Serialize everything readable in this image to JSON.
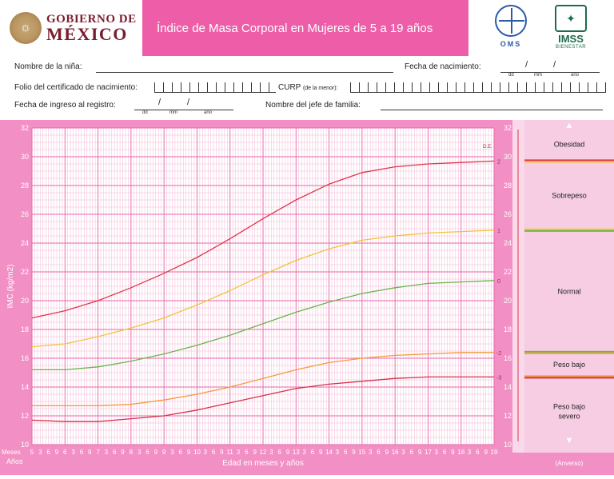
{
  "header": {
    "gov_line1": "GOBIERNO DE",
    "gov_line2": "MÉXICO",
    "title": "Índice de Masa Corporal en Mujeres de 5 a 19 años",
    "oms_label": "OMS",
    "imss_label": "IMSS",
    "imss_sub": "BIENESTAR"
  },
  "form": {
    "name_label": "Nombre de la niña:",
    "birth_label": "Fecha de nacimiento:",
    "folio_label": "Folio del certificado de nacimiento:",
    "curp_label": "CURP",
    "curp_note": "(de la menor):",
    "entry_label": "Fecha de ingreso al registro:",
    "head_label": "Nombre del jefe de familia:",
    "dd": "dd",
    "mm": "mm",
    "yy": "año",
    "slash": "/"
  },
  "chart_data": {
    "type": "line",
    "ylabel": "IMC (kg/m2)",
    "xlabel": "Edad en meses y años",
    "x_row_label_months": "Meses",
    "x_row_label_years": "Años",
    "ylim": [
      10,
      32
    ],
    "y_ticks": [
      10,
      12,
      14,
      16,
      18,
      20,
      22,
      24,
      26,
      28,
      30,
      32
    ],
    "x_range_years": [
      5,
      19
    ],
    "x_tick_labels": [
      "5",
      "3",
      "6",
      "9",
      "6",
      "3",
      "6",
      "9",
      "7",
      "3",
      "6",
      "9",
      "8",
      "3",
      "6",
      "9",
      "9",
      "3",
      "6",
      "9",
      "10",
      "3",
      "6",
      "9",
      "11",
      "3",
      "6",
      "9",
      "12",
      "3",
      "6",
      "9",
      "13",
      "3",
      "6",
      "9",
      "14",
      "3",
      "6",
      "9",
      "15",
      "3",
      "6",
      "9",
      "16",
      "3",
      "6",
      "9",
      "17",
      "3",
      "6",
      "9",
      "18",
      "3",
      "6",
      "9",
      "19"
    ],
    "de_label": "D.E.",
    "footer_note": "(Anverso)",
    "grid": true,
    "series": [
      {
        "name": "2",
        "color": "#e0364a",
        "x": [
          5,
          6,
          7,
          8,
          9,
          10,
          11,
          12,
          13,
          14,
          15,
          16,
          17,
          18,
          19
        ],
        "values": [
          18.8,
          19.3,
          20.0,
          20.9,
          21.9,
          23.0,
          24.3,
          25.7,
          27.0,
          28.1,
          28.9,
          29.3,
          29.5,
          29.6,
          29.7
        ]
      },
      {
        "name": "1",
        "color": "#f2c43a",
        "x": [
          5,
          6,
          7,
          8,
          9,
          10,
          11,
          12,
          13,
          14,
          15,
          16,
          17,
          18,
          19
        ],
        "values": [
          16.8,
          17.0,
          17.5,
          18.1,
          18.8,
          19.7,
          20.7,
          21.8,
          22.8,
          23.6,
          24.2,
          24.5,
          24.7,
          24.8,
          24.9
        ]
      },
      {
        "name": "0",
        "color": "#6bb44a",
        "x": [
          5,
          6,
          7,
          8,
          9,
          10,
          11,
          12,
          13,
          14,
          15,
          16,
          17,
          18,
          19
        ],
        "values": [
          15.2,
          15.2,
          15.4,
          15.8,
          16.3,
          16.9,
          17.6,
          18.4,
          19.2,
          19.9,
          20.5,
          20.9,
          21.2,
          21.3,
          21.4
        ]
      },
      {
        "name": "-2",
        "color": "#f59a3a",
        "x": [
          5,
          6,
          7,
          8,
          9,
          10,
          11,
          12,
          13,
          14,
          15,
          16,
          17,
          18,
          19
        ],
        "values": [
          12.7,
          12.7,
          12.7,
          12.8,
          13.1,
          13.5,
          14.0,
          14.6,
          15.2,
          15.7,
          16.0,
          16.2,
          16.3,
          16.4,
          16.4
        ]
      },
      {
        "name": "-3",
        "color": "#d4334a",
        "x": [
          5,
          6,
          7,
          8,
          9,
          10,
          11,
          12,
          13,
          14,
          15,
          16,
          17,
          18,
          19
        ],
        "values": [
          11.7,
          11.6,
          11.6,
          11.8,
          12.0,
          12.4,
          12.9,
          13.4,
          13.9,
          14.2,
          14.4,
          14.6,
          14.7,
          14.7,
          14.7
        ]
      }
    ],
    "categories_legend": [
      {
        "label": "Obesidad",
        "bg": "#f6cde3"
      },
      {
        "label": "Sobrepeso",
        "bg": "#f6cde3"
      },
      {
        "label": "Normal",
        "bg": "#f6cde3"
      },
      {
        "label": "Peso bajo",
        "bg": "#f6cde3"
      },
      {
        "label": "Peso bajo severo",
        "bg": "#f6cde3"
      }
    ]
  }
}
